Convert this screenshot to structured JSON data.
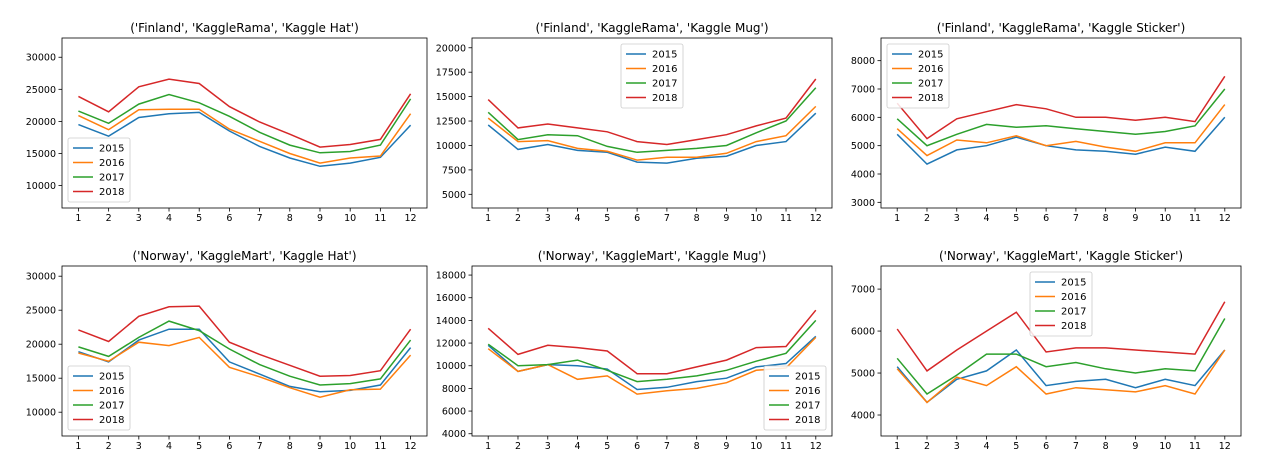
{
  "legend_labels": [
    "2015",
    "2016",
    "2017",
    "2018"
  ],
  "colors": {
    "2015": "#1f77b4",
    "2016": "#ff7f0e",
    "2017": "#2ca02c",
    "2018": "#d62728"
  },
  "chart_data": [
    {
      "type": "line",
      "title": "('Finland', 'KaggleRama', 'Kaggle Hat')",
      "x": [
        1,
        2,
        3,
        4,
        5,
        6,
        7,
        8,
        9,
        10,
        11,
        12
      ],
      "ylim": [
        6500,
        33000
      ],
      "yticks": [
        10000,
        15000,
        20000,
        25000,
        30000
      ],
      "legend_position": "lower-left",
      "series": [
        {
          "name": "2015",
          "values": [
            19500,
            17700,
            20600,
            21200,
            21400,
            18500,
            16100,
            14300,
            13000,
            13500,
            14400,
            19400
          ]
        },
        {
          "name": "2016",
          "values": [
            20900,
            18700,
            21800,
            21900,
            21900,
            18800,
            16900,
            15000,
            13500,
            14300,
            14600,
            21200
          ]
        },
        {
          "name": "2017",
          "values": [
            21600,
            19700,
            22700,
            24200,
            22900,
            20800,
            18300,
            16300,
            15100,
            15300,
            16300,
            23500
          ]
        },
        {
          "name": "2018",
          "values": [
            23900,
            21500,
            25400,
            26600,
            25900,
            22300,
            19900,
            18000,
            16000,
            16400,
            17200,
            24300
          ]
        }
      ]
    },
    {
      "type": "line",
      "title": "('Finland', 'KaggleRama', 'Kaggle Mug')",
      "x": [
        1,
        2,
        3,
        4,
        5,
        6,
        7,
        8,
        9,
        10,
        11,
        12
      ],
      "ylim": [
        3600,
        21000
      ],
      "yticks": [
        5000,
        7500,
        10000,
        12500,
        15000,
        17500,
        20000
      ],
      "legend_position": "upper-center",
      "series": [
        {
          "name": "2015",
          "values": [
            12100,
            9600,
            10100,
            9500,
            9300,
            8300,
            8200,
            8700,
            8900,
            10000,
            10400,
            13300
          ]
        },
        {
          "name": "2016",
          "values": [
            12800,
            10400,
            10500,
            9700,
            9400,
            8500,
            8800,
            8800,
            9200,
            10400,
            11000,
            14000
          ]
        },
        {
          "name": "2017",
          "values": [
            13400,
            10600,
            11100,
            11000,
            9900,
            9300,
            9500,
            9700,
            10000,
            11300,
            12500,
            15900
          ]
        },
        {
          "name": "2018",
          "values": [
            14700,
            11800,
            12200,
            11800,
            11400,
            10400,
            10100,
            10600,
            11100,
            12000,
            12800,
            16800
          ]
        }
      ]
    },
    {
      "type": "line",
      "title": "('Finland', 'KaggleRama', 'Kaggle Sticker')",
      "x": [
        1,
        2,
        3,
        4,
        5,
        6,
        7,
        8,
        9,
        10,
        11,
        12
      ],
      "ylim": [
        2800,
        8800
      ],
      "yticks": [
        3000,
        4000,
        5000,
        6000,
        7000,
        8000
      ],
      "legend_position": "upper-left",
      "series": [
        {
          "name": "2015",
          "values": [
            5400,
            4350,
            4850,
            5000,
            5300,
            5000,
            4850,
            4800,
            4700,
            4950,
            4800,
            6000
          ]
        },
        {
          "name": "2016",
          "values": [
            5600,
            4650,
            5200,
            5100,
            5350,
            5000,
            5150,
            4950,
            4800,
            5100,
            5100,
            6450
          ]
        },
        {
          "name": "2017",
          "values": [
            5950,
            5000,
            5400,
            5750,
            5650,
            5700,
            5600,
            5500,
            5400,
            5500,
            5700,
            7000
          ]
        },
        {
          "name": "2018",
          "values": [
            6500,
            5250,
            5950,
            6200,
            6450,
            6300,
            6000,
            6000,
            5900,
            6000,
            5850,
            7450
          ]
        }
      ]
    },
    {
      "type": "line",
      "title": "('Norway', 'KaggleMart', 'Kaggle Hat')",
      "x": [
        1,
        2,
        3,
        4,
        5,
        6,
        7,
        8,
        9,
        10,
        11,
        12
      ],
      "ylim": [
        6500,
        31500
      ],
      "yticks": [
        10000,
        15000,
        20000,
        25000,
        30000
      ],
      "legend_position": "lower-left",
      "series": [
        {
          "name": "2015",
          "values": [
            18900,
            17400,
            20600,
            22200,
            22200,
            17400,
            15600,
            13800,
            13000,
            13200,
            14000,
            19500
          ]
        },
        {
          "name": "2016",
          "values": [
            18700,
            17500,
            20300,
            19800,
            21000,
            16600,
            15200,
            13600,
            12200,
            13300,
            13400,
            18400
          ]
        },
        {
          "name": "2017",
          "values": [
            19600,
            18200,
            21000,
            23400,
            22000,
            19300,
            17000,
            15300,
            14000,
            14200,
            14900,
            20600
          ]
        },
        {
          "name": "2018",
          "values": [
            22100,
            20400,
            24100,
            25500,
            25600,
            20300,
            18500,
            16900,
            15300,
            15400,
            16100,
            22200
          ]
        }
      ]
    },
    {
      "type": "line",
      "title": "('Norway', 'KaggleMart', 'Kaggle Mug')",
      "x": [
        1,
        2,
        3,
        4,
        5,
        6,
        7,
        8,
        9,
        10,
        11,
        12
      ],
      "ylim": [
        3800,
        18800
      ],
      "yticks": [
        4000,
        6000,
        8000,
        10000,
        12000,
        14000,
        16000,
        18000
      ],
      "legend_position": "lower-right",
      "series": [
        {
          "name": "2015",
          "values": [
            11800,
            9500,
            10100,
            10000,
            9700,
            7900,
            8100,
            8600,
            8900,
            9900,
            10200,
            12600
          ]
        },
        {
          "name": "2016",
          "values": [
            11500,
            9500,
            10100,
            8800,
            9100,
            7500,
            7800,
            8000,
            8500,
            9600,
            9800,
            12500
          ]
        },
        {
          "name": "2017",
          "values": [
            11900,
            10000,
            10100,
            10500,
            9600,
            8600,
            8800,
            9100,
            9600,
            10400,
            11100,
            14000
          ]
        },
        {
          "name": "2018",
          "values": [
            13300,
            11000,
            11800,
            11600,
            11300,
            9300,
            9300,
            9900,
            10500,
            11600,
            11700,
            14900
          ]
        }
      ]
    },
    {
      "type": "line",
      "title": "('Norway', 'KaggleMart', 'Kaggle Sticker')",
      "x": [
        1,
        2,
        3,
        4,
        5,
        6,
        7,
        8,
        9,
        10,
        11,
        12
      ],
      "ylim": [
        3500,
        7550
      ],
      "yticks": [
        4000,
        5000,
        6000,
        7000
      ],
      "legend_position": "upper-center",
      "series": [
        {
          "name": "2015",
          "values": [
            5150,
            4300,
            4850,
            5050,
            5550,
            4700,
            4800,
            4850,
            4650,
            4850,
            4700,
            5550
          ]
        },
        {
          "name": "2016",
          "values": [
            5100,
            4300,
            4900,
            4700,
            5150,
            4500,
            4650,
            4600,
            4550,
            4700,
            4500,
            5550
          ]
        },
        {
          "name": "2017",
          "values": [
            5350,
            4500,
            4950,
            5450,
            5450,
            5150,
            5250,
            5100,
            5000,
            5100,
            5050,
            6300
          ]
        },
        {
          "name": "2018",
          "values": [
            6050,
            5050,
            5550,
            6000,
            6450,
            5500,
            5600,
            5600,
            5550,
            5500,
            5450,
            6700
          ]
        }
      ]
    }
  ]
}
